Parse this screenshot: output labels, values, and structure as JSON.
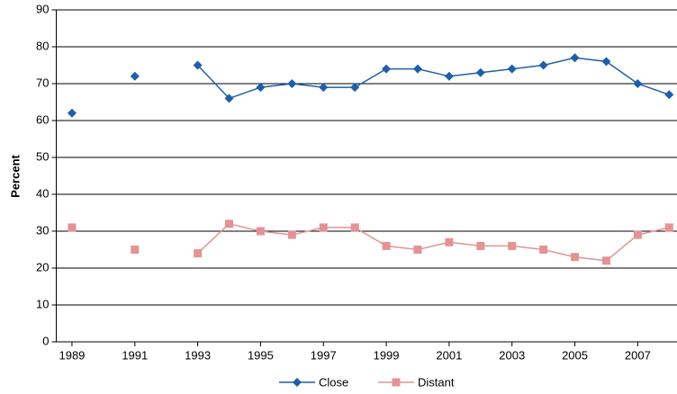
{
  "chart_data": {
    "type": "line",
    "y_label": "Percent",
    "x": [
      1989,
      1990,
      1991,
      1992,
      1993,
      1994,
      1995,
      1996,
      1997,
      1998,
      1999,
      2000,
      2001,
      2002,
      2003,
      2004,
      2005,
      2006,
      2007,
      2008
    ],
    "series": [
      {
        "name": "Close",
        "color": "#1f5fa8",
        "marker": "diamond",
        "values": [
          62,
          null,
          72,
          null,
          75,
          66,
          69,
          70,
          69,
          69,
          74,
          74,
          72,
          73,
          74,
          75,
          77,
          76,
          70,
          67
        ]
      },
      {
        "name": "Distant",
        "color": "#e39395",
        "marker": "square",
        "values": [
          31,
          null,
          25,
          null,
          24,
          32,
          30,
          29,
          31,
          31,
          26,
          25,
          27,
          26,
          26,
          25,
          23,
          22,
          29,
          31
        ]
      }
    ],
    "xlim": [
      1988.5,
      2008.25
    ],
    "xticks": [
      1989,
      1991,
      1993,
      1995,
      1997,
      1999,
      2001,
      2003,
      2005,
      2007
    ],
    "ylim": [
      0,
      90
    ],
    "yticks": [
      0,
      10,
      20,
      30,
      40,
      50,
      60,
      70,
      80,
      90
    ],
    "grid": true,
    "legend": "bottom"
  }
}
